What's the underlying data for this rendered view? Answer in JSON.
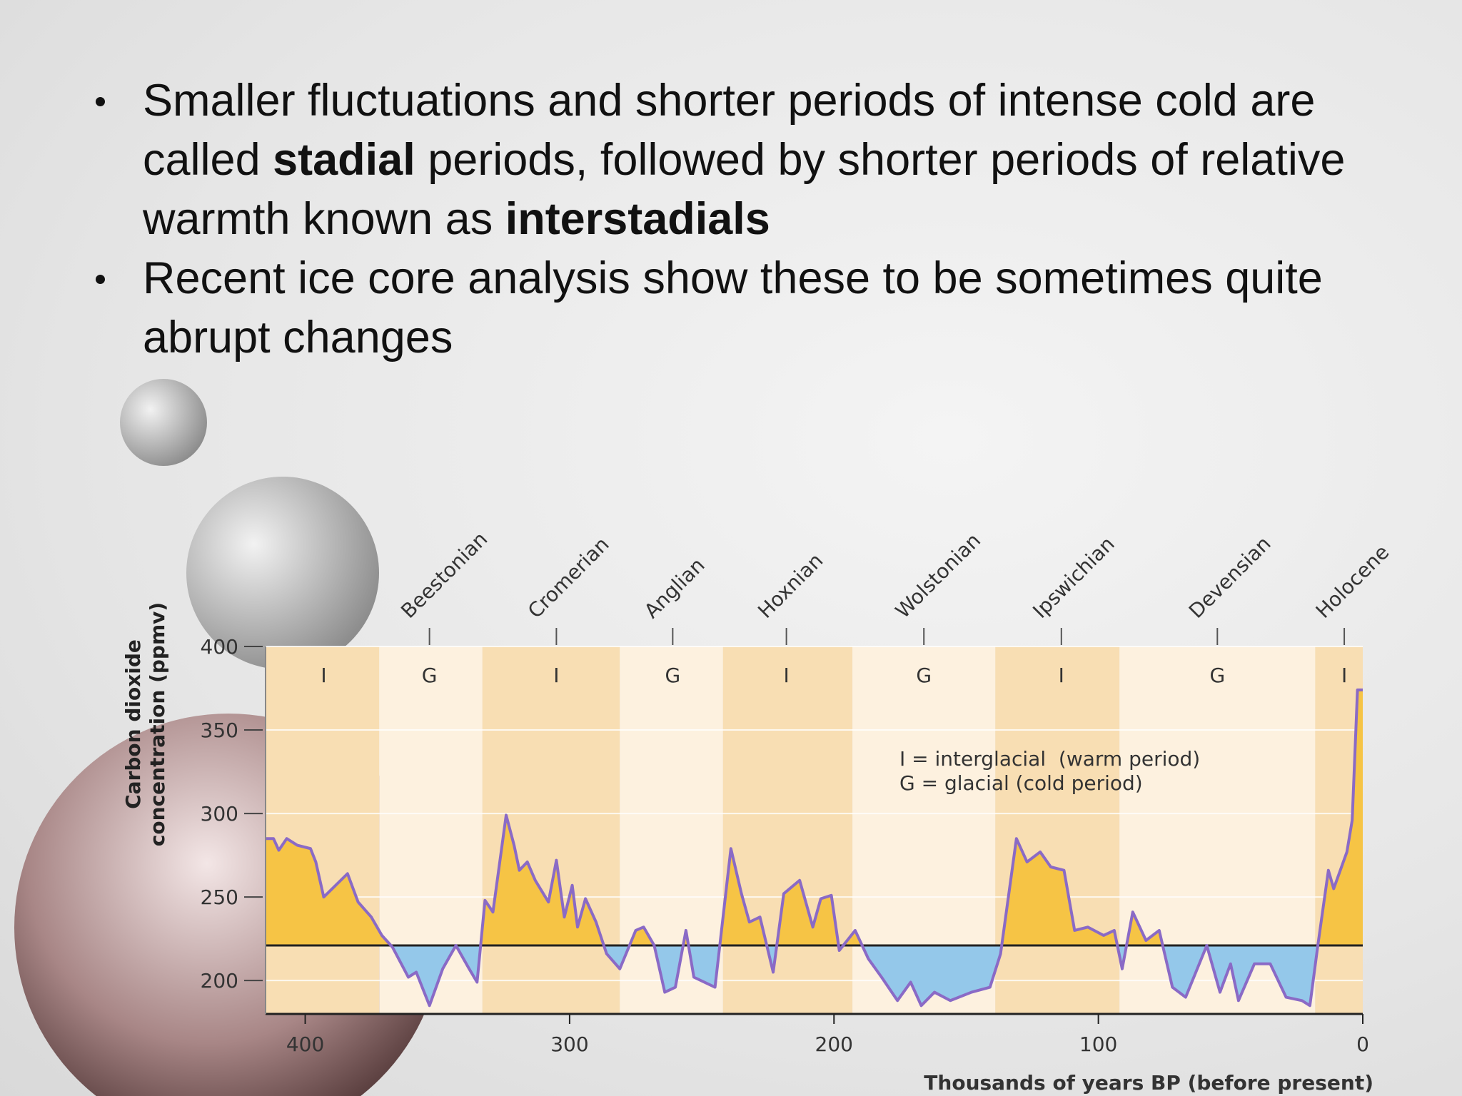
{
  "bullets": [
    [
      {
        "text": "Smaller fluctuations and shorter periods of intense cold are called ",
        "bold": false
      },
      {
        "text": "stadial",
        "bold": true
      },
      {
        "text": " periods, followed by shorter periods of relative warmth known as ",
        "bold": false
      },
      {
        "text": "interstadials",
        "bold": true
      }
    ],
    [
      {
        "text": "Recent ice core analysis show these to be sometimes quite abrupt changes",
        "bold": false
      }
    ]
  ],
  "chart_data": {
    "type": "area",
    "y_label": [
      "Carbon dioxide",
      "concentration (ppmv)"
    ],
    "x_label": "Thousands of years BP (before present)",
    "legend": [
      "I = interglacial  (warm period)",
      "G = glacial (cold period)"
    ],
    "x": [
      415,
      412,
      410,
      407,
      403,
      398,
      396,
      393,
      384,
      380,
      375,
      371,
      367,
      361,
      358,
      353,
      348,
      343,
      338,
      335,
      332,
      329,
      324,
      321,
      319,
      316,
      313,
      308,
      305,
      302,
      299,
      297,
      294,
      290,
      286,
      281,
      275,
      272,
      268,
      264,
      260,
      256,
      253,
      245,
      239,
      235,
      232,
      228,
      223,
      219,
      213,
      208,
      205,
      201,
      198,
      192,
      187,
      182,
      176,
      171,
      167,
      162,
      156,
      148,
      141,
      137,
      131,
      127,
      122,
      118,
      113,
      109,
      104,
      98,
      94,
      91,
      87,
      82,
      77,
      72,
      67,
      59,
      54,
      50,
      47,
      41,
      35,
      29,
      23,
      20,
      17,
      13,
      11,
      6,
      4,
      2,
      0
    ],
    "values": [
      285,
      285,
      278,
      285,
      281,
      279,
      271,
      250,
      264,
      247,
      238,
      227,
      220,
      202,
      205,
      185,
      207,
      221,
      207,
      199,
      248,
      241,
      299,
      281,
      266,
      271,
      260,
      247,
      272,
      238,
      257,
      232,
      249,
      235,
      216,
      207,
      230,
      232,
      221,
      193,
      196,
      230,
      202,
      196,
      279,
      252,
      235,
      238,
      205,
      252,
      260,
      232,
      249,
      251,
      218,
      230,
      213,
      202,
      188,
      199,
      185,
      193,
      188,
      193,
      196,
      216,
      285,
      271,
      277,
      268,
      266,
      230,
      232,
      227,
      230,
      207,
      241,
      224,
      230,
      196,
      190,
      221,
      193,
      210,
      188,
      210,
      210,
      190,
      188,
      185,
      221,
      266,
      255,
      277,
      296,
      374,
      374
    ],
    "colors": {
      "above": "#f6c445",
      "below": "#94c8ea",
      "line": "#8a6ac6",
      "reference": "#222222"
    },
    "reference_line": 221,
    "xlim": [
      415,
      0
    ],
    "ylim": [
      180,
      400
    ],
    "xticks": [
      400,
      300,
      200,
      100,
      0
    ],
    "yticks": [
      400,
      350,
      300,
      250,
      200
    ],
    "grid": true,
    "band_colors": {
      "I": "#f8deb3",
      "G": "#fdf1df"
    },
    "periods": [
      {
        "label": "I",
        "at": 393,
        "start": 415,
        "end": 372
      },
      {
        "name": "Beestonian",
        "label": "G",
        "at": 353,
        "start": 372,
        "end": 333
      },
      {
        "name": "Cromerian",
        "label": "I",
        "at": 305,
        "start": 333,
        "end": 281
      },
      {
        "name": "Anglian",
        "label": "G",
        "at": 261,
        "start": 281,
        "end": 242
      },
      {
        "name": "Hoxnian",
        "label": "I",
        "at": 218,
        "start": 242,
        "end": 193
      },
      {
        "name": "Wolstonian",
        "label": "G",
        "at": 166,
        "start": 193,
        "end": 139
      },
      {
        "name": "Ipswichian",
        "label": "I",
        "at": 114,
        "start": 139,
        "end": 92
      },
      {
        "name": "Devensian",
        "label": "G",
        "at": 55,
        "start": 92,
        "end": 18
      },
      {
        "name": "Holocene",
        "label": "I",
        "at": 7,
        "start": 18,
        "end": 0
      }
    ]
  }
}
